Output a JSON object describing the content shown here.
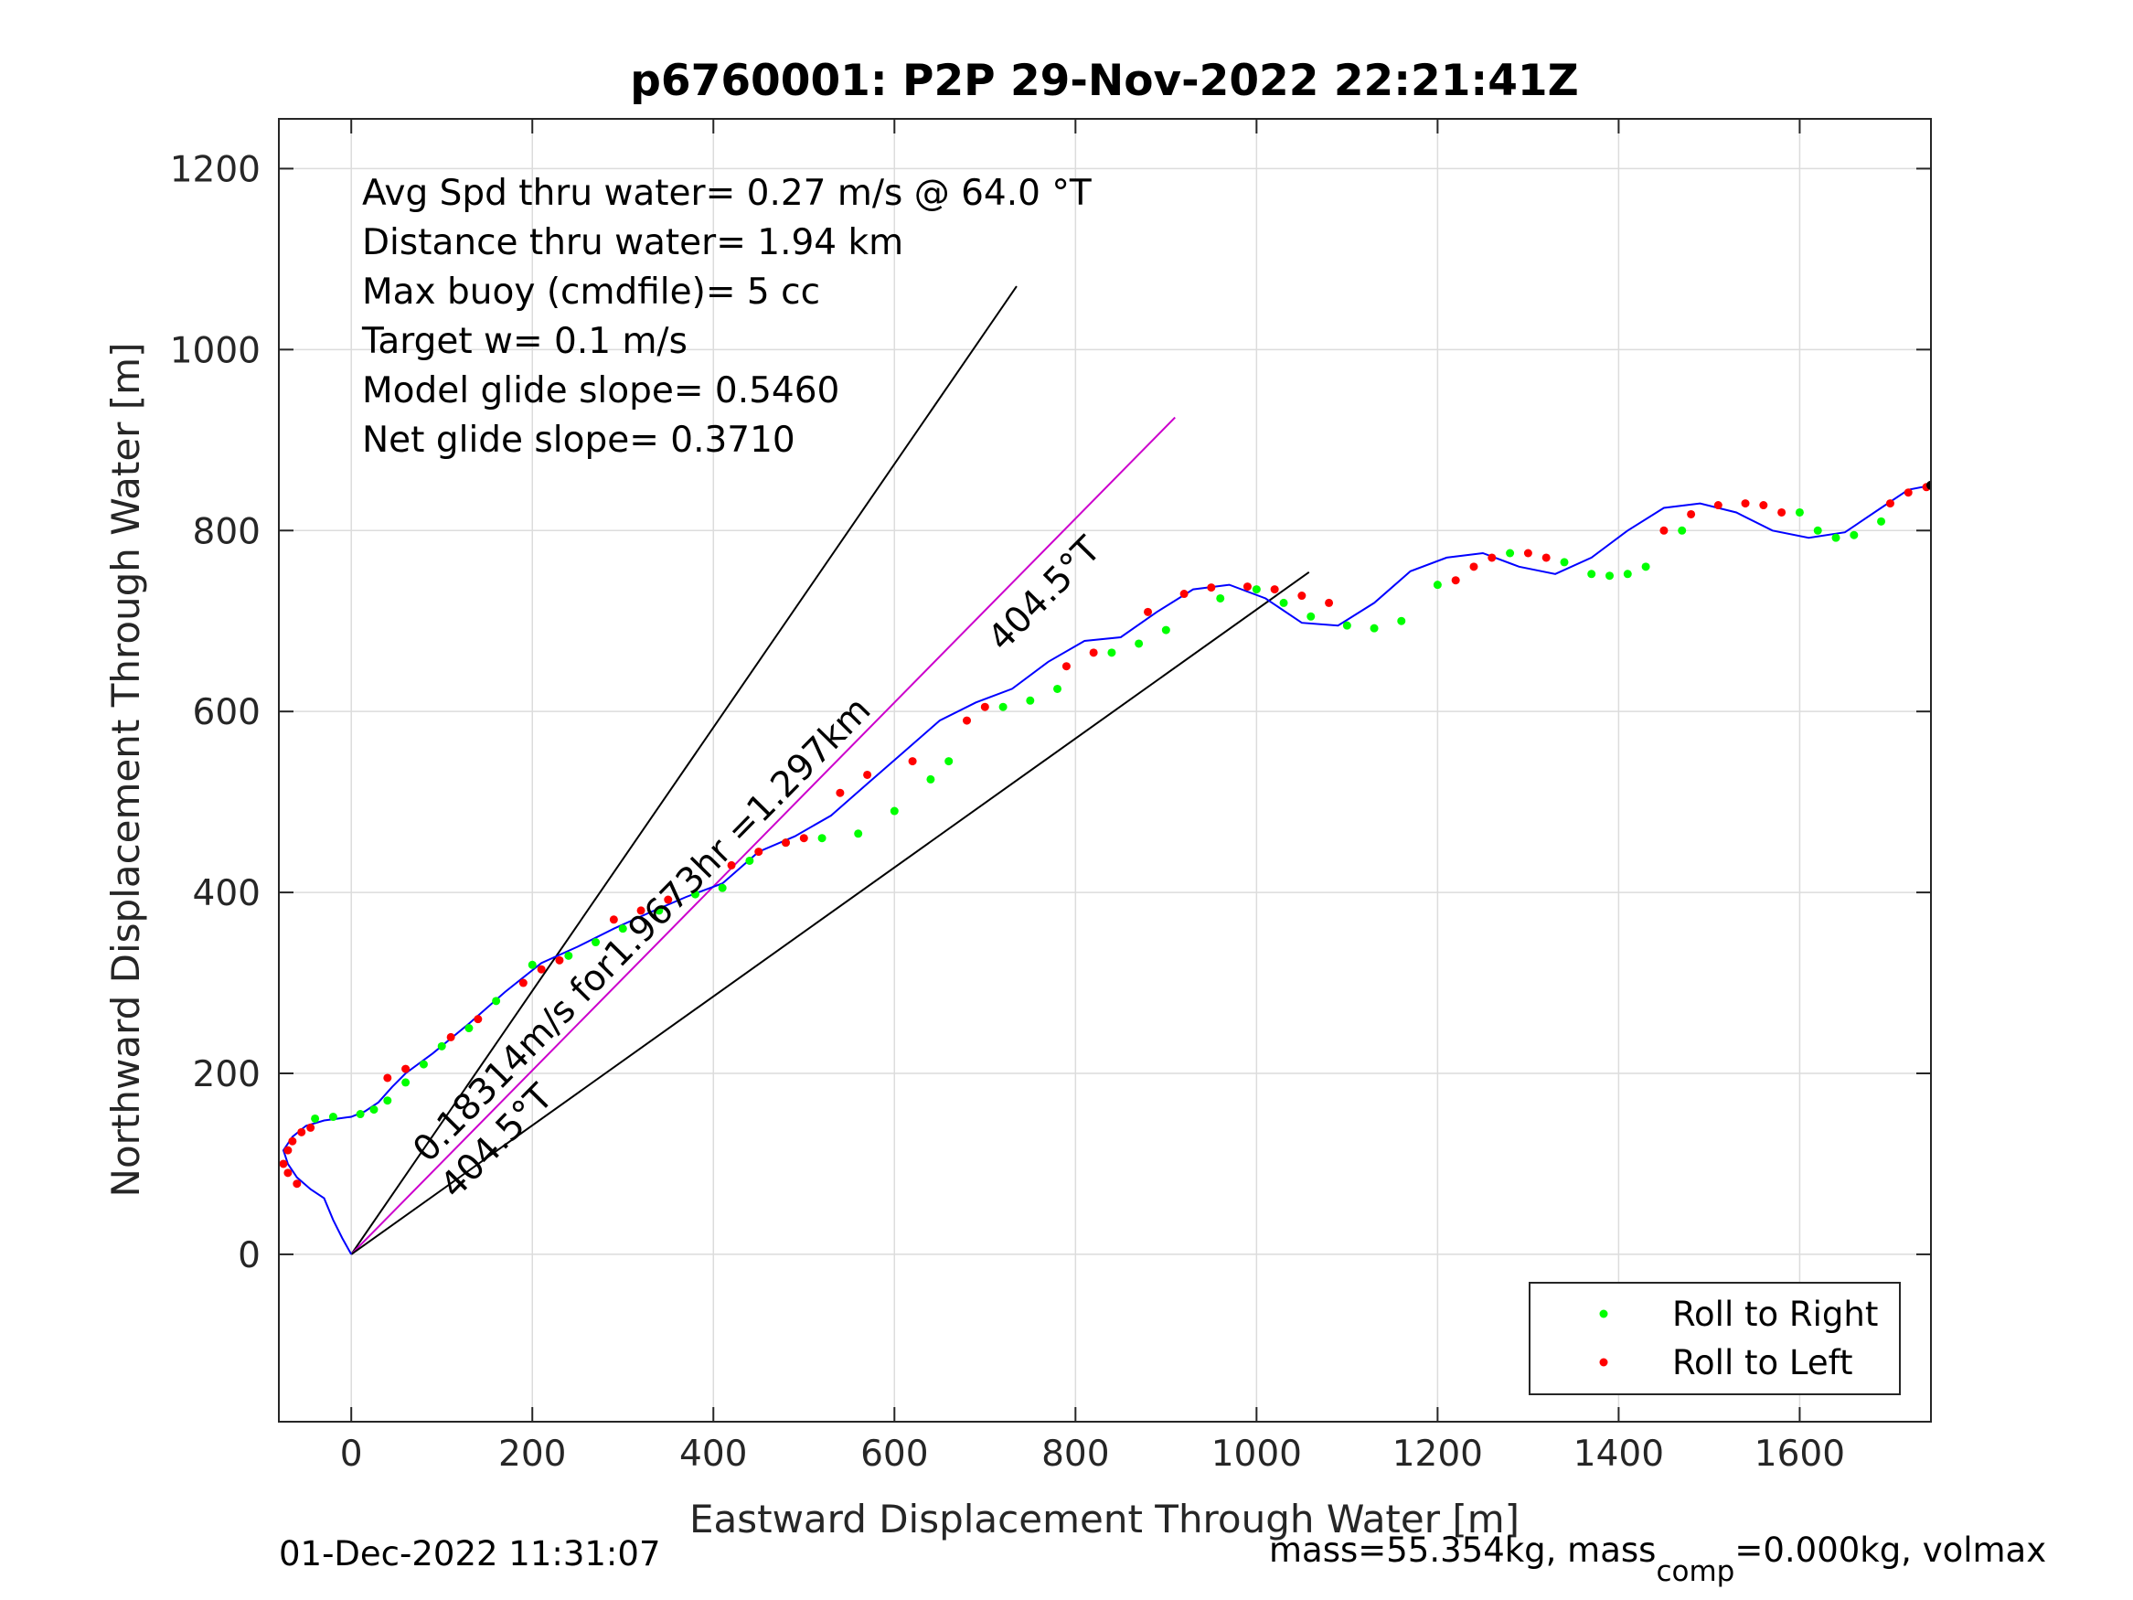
{
  "chart_data": {
    "type": "line",
    "title": "p6760001: P2P 29-Nov-2022 22:21:41Z",
    "xlabel": "Eastward Displacement Through Water [m]",
    "ylabel": "Northward Displacement Through Water [m]",
    "xlim": [
      -80,
      1745
    ],
    "ylim": [
      -185,
      1255
    ],
    "x_ticks": [
      0,
      200,
      400,
      600,
      800,
      1000,
      1200,
      1400,
      1600
    ],
    "y_ticks": [
      0,
      200,
      400,
      600,
      800,
      1000,
      1200
    ],
    "grid": true,
    "legend_position": "bottom-right",
    "legend": [
      {
        "label": "Roll to Right",
        "color": "#00ff00"
      },
      {
        "label": "Roll to Left",
        "color": "#ff0000"
      }
    ],
    "info_lines": [
      "Avg Spd thru water=  0.27 m/s @  64.0 °T",
      "Distance thru water=  1.94 km",
      "Max buoy (cmdfile)= 5 cc",
      "Target w= 0.1 m/s",
      "Model glide slope= 0.5460",
      "Net glide slope= 0.3710"
    ],
    "track_color": "#0000ff",
    "track": {
      "x": [
        0,
        -10,
        -20,
        -30,
        -45,
        -60,
        -70,
        -75,
        -65,
        -50,
        -30,
        -15,
        0,
        15,
        30,
        45,
        60,
        90,
        130,
        170,
        210,
        250,
        290,
        330,
        370,
        410,
        450,
        490,
        530,
        570,
        610,
        650,
        690,
        730,
        770,
        810,
        850,
        890,
        930,
        970,
        1010,
        1050,
        1090,
        1130,
        1170,
        1210,
        1250,
        1290,
        1330,
        1370,
        1410,
        1450,
        1490,
        1530,
        1570,
        1610,
        1650,
        1690,
        1720,
        1745
      ],
      "y": [
        0,
        18,
        38,
        62,
        72,
        85,
        100,
        115,
        130,
        142,
        148,
        150,
        152,
        158,
        168,
        185,
        200,
        222,
        255,
        290,
        322,
        340,
        360,
        378,
        395,
        410,
        445,
        462,
        485,
        520,
        555,
        590,
        610,
        625,
        655,
        678,
        682,
        710,
        735,
        740,
        725,
        698,
        695,
        720,
        755,
        770,
        775,
        760,
        752,
        770,
        800,
        825,
        830,
        820,
        800,
        792,
        798,
        825,
        845,
        850
      ]
    },
    "roll_right_x": [
      -40,
      -20,
      10,
      25,
      40,
      60,
      80,
      100,
      130,
      160,
      200,
      240,
      270,
      300,
      340,
      380,
      410,
      440,
      480,
      520,
      560,
      600,
      640,
      660,
      720,
      750,
      780,
      840,
      870,
      900,
      960,
      1000,
      1030,
      1060,
      1100,
      1130,
      1160,
      1200,
      1280,
      1340,
      1370,
      1390,
      1410,
      1430,
      1470,
      1600,
      1620,
      1640,
      1660,
      1690
    ],
    "roll_right_y": [
      150,
      152,
      155,
      160,
      170,
      190,
      210,
      230,
      250,
      280,
      320,
      330,
      345,
      360,
      380,
      398,
      405,
      435,
      455,
      460,
      465,
      490,
      525,
      545,
      605,
      612,
      625,
      665,
      675,
      690,
      725,
      735,
      720,
      705,
      695,
      692,
      700,
      740,
      775,
      765,
      752,
      750,
      752,
      760,
      800,
      820,
      800,
      792,
      795,
      810
    ],
    "roll_left_x": [
      -75,
      -70,
      -65,
      -55,
      -45,
      -60,
      -70,
      40,
      60,
      110,
      140,
      190,
      210,
      230,
      290,
      320,
      350,
      420,
      450,
      480,
      500,
      540,
      570,
      620,
      680,
      700,
      790,
      820,
      880,
      920,
      950,
      990,
      1020,
      1050,
      1080,
      1220,
      1240,
      1260,
      1300,
      1320,
      1450,
      1480,
      1510,
      1540,
      1560,
      1580,
      1700,
      1720,
      1740
    ],
    "roll_left_y": [
      100,
      115,
      125,
      135,
      140,
      78,
      90,
      195,
      205,
      240,
      260,
      300,
      315,
      325,
      370,
      380,
      392,
      430,
      445,
      455,
      460,
      510,
      530,
      545,
      590,
      605,
      650,
      665,
      710,
      730,
      737,
      738,
      735,
      728,
      720,
      745,
      760,
      770,
      775,
      770,
      800,
      818,
      828,
      830,
      828,
      820,
      830,
      842,
      848
    ],
    "heading_lines": [
      {
        "from": [
          0,
          0
        ],
        "to": [
          735,
          1070
        ],
        "color": "#000000"
      },
      {
        "from": [
          0,
          0
        ],
        "to": [
          910,
          925
        ],
        "color": "#cc00cc"
      },
      {
        "from": [
          0,
          0
        ],
        "to": [
          1058,
          754
        ],
        "color": "#000000"
      }
    ],
    "annotations": [
      {
        "text": "0.18314m/s for1.9673hr =1.297km",
        "x": 85,
        "y": 100,
        "angle": -45.5
      },
      {
        "text": "404.5°T",
        "x": 115,
        "y": 60,
        "angle": -45.5
      },
      {
        "text": "404.5°T",
        "x": 720,
        "y": 665,
        "angle": -45.5
      }
    ]
  },
  "footer": {
    "left": "01-Dec-2022 11:31:07",
    "right_prefix": "mass=55.354kg, mass",
    "right_sub": "comp",
    "right_suffix": "=0.000kg, volmax"
  }
}
